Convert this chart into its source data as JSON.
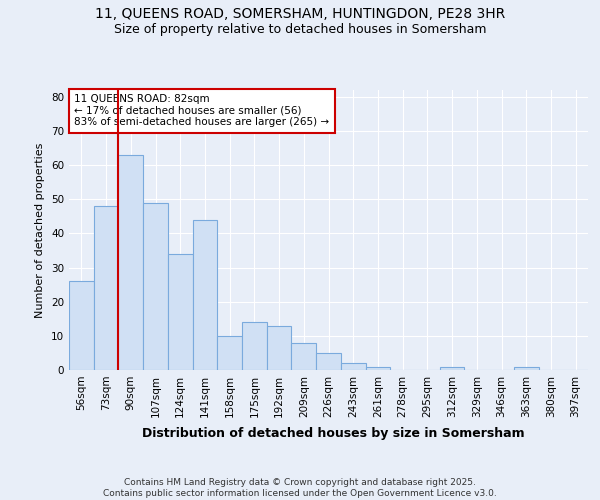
{
  "title1": "11, QUEENS ROAD, SOMERSHAM, HUNTINGDON, PE28 3HR",
  "title2": "Size of property relative to detached houses in Somersham",
  "xlabel": "Distribution of detached houses by size in Somersham",
  "ylabel": "Number of detached properties",
  "categories": [
    "56sqm",
    "73sqm",
    "90sqm",
    "107sqm",
    "124sqm",
    "141sqm",
    "158sqm",
    "175sqm",
    "192sqm",
    "209sqm",
    "226sqm",
    "243sqm",
    "261sqm",
    "278sqm",
    "295sqm",
    "312sqm",
    "329sqm",
    "346sqm",
    "363sqm",
    "380sqm",
    "397sqm"
  ],
  "values": [
    26,
    48,
    63,
    49,
    34,
    44,
    10,
    14,
    13,
    8,
    5,
    2,
    1,
    0,
    0,
    1,
    0,
    0,
    1,
    0,
    0
  ],
  "bar_color": "#d0e0f4",
  "bar_edge_color": "#7aaadd",
  "bar_edge_width": 0.8,
  "vline_x": 1.5,
  "vline_color": "#cc0000",
  "annotation_text": "11 QUEENS ROAD: 82sqm\n← 17% of detached houses are smaller (56)\n83% of semi-detached houses are larger (265) →",
  "annotation_box_color": "#ffffff",
  "annotation_box_edge": "#cc0000",
  "ylim": [
    0,
    82
  ],
  "yticks": [
    0,
    10,
    20,
    30,
    40,
    50,
    60,
    70,
    80
  ],
  "bg_color": "#e8eef8",
  "plot_bg_color": "#e8eef8",
  "footer": "Contains HM Land Registry data © Crown copyright and database right 2025.\nContains public sector information licensed under the Open Government Licence v3.0.",
  "title_fontsize": 10,
  "subtitle_fontsize": 9,
  "xlabel_fontsize": 9,
  "ylabel_fontsize": 8,
  "tick_fontsize": 7.5,
  "annotation_fontsize": 7.5,
  "footer_fontsize": 6.5
}
